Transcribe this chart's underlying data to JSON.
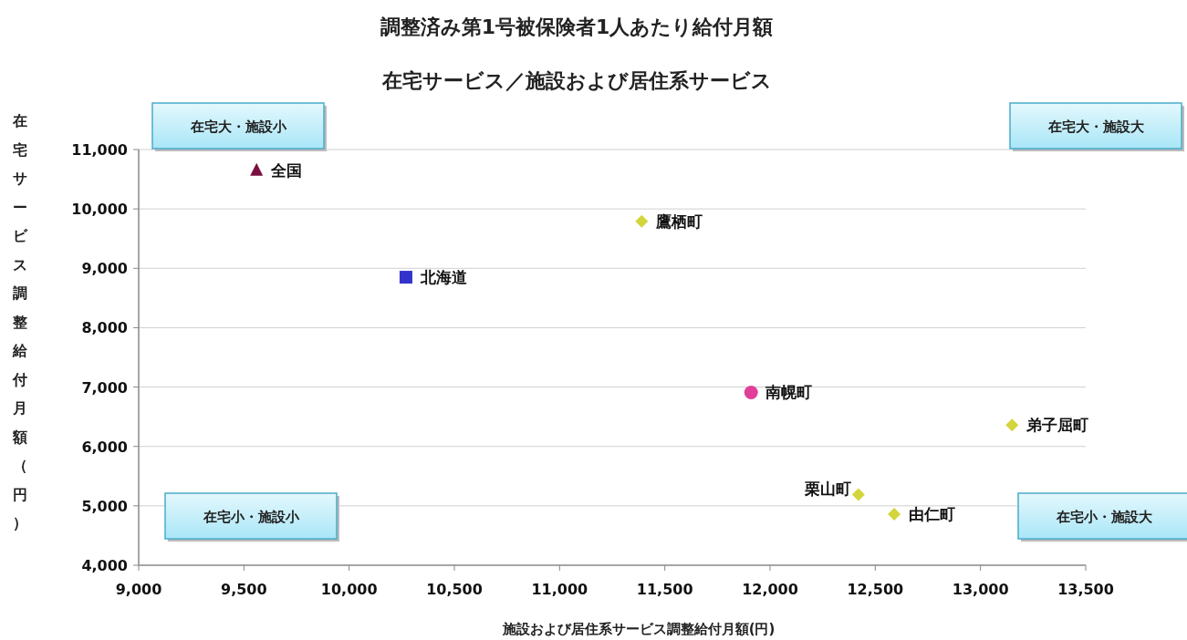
{
  "chart_data": {
    "type": "scatter",
    "title": "調整済み第1号被保険者1人あたり給付月額",
    "subtitle": "在宅サービス／施設および居住系サービス",
    "xlabel": "施設および居住系サービス調整給付月額(円)",
    "ylabel": "在宅サービス調整給付月額（円）",
    "xlim": [
      9000,
      13500
    ],
    "xticks": [
      {
        "value": 9000,
        "label": "9,000"
      },
      {
        "value": 9500,
        "label": "9,500"
      },
      {
        "value": 10000,
        "label": "10,000"
      },
      {
        "value": 10500,
        "label": "10,500"
      },
      {
        "value": 11000,
        "label": "11,000"
      },
      {
        "value": 11500,
        "label": "11,500"
      },
      {
        "value": 12000,
        "label": "12,000"
      },
      {
        "value": 12500,
        "label": "12,500"
      },
      {
        "value": 13000,
        "label": "13,000"
      },
      {
        "value": 13500,
        "label": "13,500"
      }
    ],
    "ylim": [
      4000,
      11000
    ],
    "yticks": [
      {
        "value": 4000,
        "label": "4,000"
      },
      {
        "value": 5000,
        "label": "5,000"
      },
      {
        "value": 6000,
        "label": "6,000"
      },
      {
        "value": 7000,
        "label": "7,000"
      },
      {
        "value": 8000,
        "label": "8,000"
      },
      {
        "value": 9000,
        "label": "9,000"
      },
      {
        "value": 10000,
        "label": "10,000"
      },
      {
        "value": 11000,
        "label": "11,000"
      }
    ],
    "grid": "y",
    "series": [
      {
        "name": "全国",
        "color": "#7b1040",
        "marker": "triangle",
        "x": [
          9560
        ],
        "values": [
          10650
        ]
      },
      {
        "name": "鷹栖町",
        "color": "#d4d43c",
        "marker": "diamond",
        "x": [
          11390
        ],
        "values": [
          9790
        ]
      },
      {
        "name": "北海道",
        "color": "#3333cc",
        "marker": "square",
        "x": [
          10270
        ],
        "values": [
          8850
        ]
      },
      {
        "name": "南幌町",
        "color": "#e0409a",
        "marker": "circle",
        "x": [
          11910
        ],
        "values": [
          6910
        ]
      },
      {
        "name": "弟子屈町",
        "color": "#d4d43c",
        "marker": "diamond",
        "x": [
          13150
        ],
        "values": [
          6360
        ]
      },
      {
        "name": "栗山町",
        "color": "#d4d43c",
        "marker": "diamond",
        "x": [
          12420
        ],
        "values": [
          5190
        ]
      },
      {
        "name": "由仁町",
        "color": "#d4d43c",
        "marker": "diamond",
        "x": [
          12590
        ],
        "values": [
          4860
        ]
      }
    ],
    "annotations": [
      "在宅大・施設小",
      "在宅大・施設大",
      "在宅小・施設小",
      "在宅小・施設大"
    ]
  }
}
